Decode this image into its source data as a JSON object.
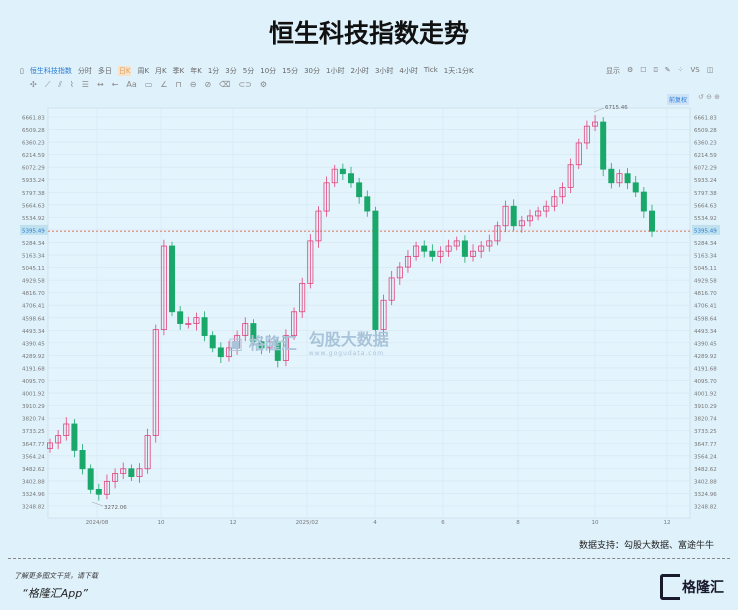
{
  "title": "恒生科技指数走势",
  "toolbar": {
    "symbol": "恒生科技指数",
    "periods": [
      "分时",
      "多日",
      "日K",
      "周K",
      "月K",
      "季K",
      "年K",
      "1分",
      "3分",
      "5分",
      "10分",
      "15分",
      "30分",
      "1小时",
      "2小时",
      "3小时",
      "4小时",
      "Tick",
      "1天:1分K"
    ],
    "active_period": "日K",
    "display": "显示",
    "vs": "VS",
    "adjust": "前复权"
  },
  "watermark": {
    "brand": "勾股大数据",
    "site": "www.gogudata.com",
    "logo_text": "格隆汇"
  },
  "source": "数据支持：勾股大数据、富途牛牛",
  "footer": {
    "line1": "了解更多图文干货，请下载",
    "line2": "“格隆汇App”",
    "logo": "格隆汇"
  },
  "colors": {
    "up": "#e0457b",
    "down": "#1aa86a",
    "current_line": "#e06a4a",
    "background": "#dff1fb"
  },
  "chart_data": {
    "type": "candlestick",
    "y_scale": "log",
    "ylim": [
      3248.82,
      6661.83
    ],
    "y_ticks": [
      "6661.83",
      "6509.28",
      "6360.23",
      "6214.59",
      "6072.29",
      "5933.24",
      "5797.38",
      "5664.63",
      "5534.92",
      "5395.49",
      "5284.34",
      "5163.34",
      "5045.11",
      "4929.58",
      "4816.70",
      "4706.41",
      "4598.64",
      "4493.34",
      "4390.45",
      "4289.92",
      "4191.68",
      "4095.70",
      "4001.92",
      "3910.29",
      "3820.74",
      "3733.25",
      "3647.77",
      "3564.24",
      "3482.62",
      "3402.88",
      "3324.96",
      "3248.82"
    ],
    "x_ticks": [
      "2024/08",
      "10",
      "12",
      "2025/02",
      "4",
      "6",
      "8",
      "10",
      "12"
    ],
    "current_price": "5395.49",
    "annotations": {
      "high": "6715.46",
      "low": "3272.06"
    },
    "grid": true,
    "closes": [
      [
        "2024-06-17",
        3650
      ],
      [
        "2024-06-24",
        3700
      ],
      [
        "2024-07-01",
        3780
      ],
      [
        "2024-07-08",
        3600
      ],
      [
        "2024-07-15",
        3480
      ],
      [
        "2024-07-22",
        3350
      ],
      [
        "2024-07-29",
        3320
      ],
      [
        "2024-08-05",
        3400
      ],
      [
        "2024-08-12",
        3450
      ],
      [
        "2024-08-19",
        3480
      ],
      [
        "2024-08-26",
        3430
      ],
      [
        "2024-09-02",
        3480
      ],
      [
        "2024-09-09",
        3700
      ],
      [
        "2024-09-16",
        4500
      ],
      [
        "2024-09-23",
        5250
      ],
      [
        "2024-09-30",
        4650
      ],
      [
        "2024-10-07",
        4550
      ],
      [
        "2024-10-14",
        4550
      ],
      [
        "2024-10-21",
        4600
      ],
      [
        "2024-10-28",
        4450
      ],
      [
        "2024-11-04",
        4350
      ],
      [
        "2024-11-11",
        4280
      ],
      [
        "2024-11-18",
        4350
      ],
      [
        "2024-11-25",
        4450
      ],
      [
        "2024-12-02",
        4550
      ],
      [
        "2024-12-09",
        4400
      ],
      [
        "2024-12-16",
        4350
      ],
      [
        "2024-12-23",
        4400
      ],
      [
        "2024-12-30",
        4250
      ],
      [
        "2025-01-06",
        4450
      ],
      [
        "2025-01-13",
        4650
      ],
      [
        "2025-01-20",
        4900
      ],
      [
        "2025-01-27",
        5300
      ],
      [
        "2025-02-03",
        5600
      ],
      [
        "2025-02-10",
        5900
      ],
      [
        "2025-02-17",
        6050
      ],
      [
        "2025-02-24",
        6000
      ],
      [
        "2025-03-03",
        5900
      ],
      [
        "2025-03-10",
        5750
      ],
      [
        "2025-03-17",
        5600
      ],
      [
        "2025-03-24",
        4500
      ],
      [
        "2025-03-31",
        4750
      ],
      [
        "2025-04-07",
        4950
      ],
      [
        "2025-04-14",
        5050
      ],
      [
        "2025-04-21",
        5150
      ],
      [
        "2025-04-28",
        5250
      ],
      [
        "2025-05-05",
        5200
      ],
      [
        "2025-05-12",
        5150
      ],
      [
        "2025-05-19",
        5200
      ],
      [
        "2025-05-26",
        5250
      ],
      [
        "2025-06-02",
        5300
      ],
      [
        "2025-06-09",
        5150
      ],
      [
        "2025-06-16",
        5200
      ],
      [
        "2025-06-23",
        5250
      ],
      [
        "2025-06-30",
        5300
      ],
      [
        "2025-07-07",
        5450
      ],
      [
        "2025-07-14",
        5650
      ],
      [
        "2025-07-21",
        5450
      ],
      [
        "2025-07-28",
        5500
      ],
      [
        "2025-08-04",
        5550
      ],
      [
        "2025-08-11",
        5600
      ],
      [
        "2025-08-18",
        5650
      ],
      [
        "2025-08-25",
        5750
      ],
      [
        "2025-09-01",
        5850
      ],
      [
        "2025-09-08",
        6100
      ],
      [
        "2025-09-15",
        6350
      ],
      [
        "2025-09-22",
        6550
      ],
      [
        "2025-09-29",
        6600
      ],
      [
        "2025-10-06",
        6050
      ],
      [
        "2025-10-13",
        5900
      ],
      [
        "2025-10-20",
        6000
      ],
      [
        "2025-10-27",
        5900
      ],
      [
        "2025-11-03",
        5800
      ],
      [
        "2025-11-10",
        5600
      ],
      [
        "2025-11-17",
        5395.49
      ]
    ]
  }
}
